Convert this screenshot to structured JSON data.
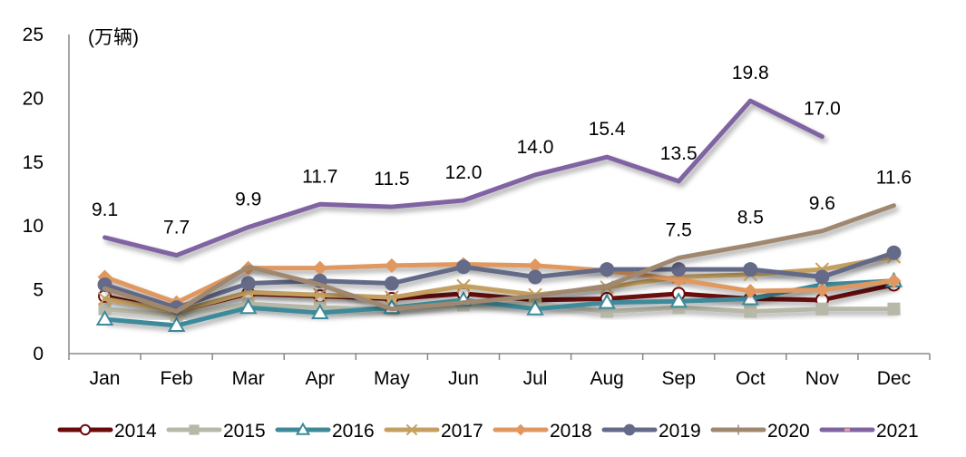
{
  "chart_data": {
    "type": "line",
    "title": "",
    "unit_label": "(万辆)",
    "xlabel": "",
    "ylabel": "",
    "ylim": [
      0,
      25
    ],
    "yticks": [
      0,
      5,
      10,
      15,
      20,
      25
    ],
    "grid": false,
    "legend_position": "bottom",
    "categories": [
      "Jan",
      "Feb",
      "Mar",
      "Apr",
      "May",
      "Jun",
      "Jul",
      "Aug",
      "Sep",
      "Oct",
      "Nov",
      "Dec"
    ],
    "series": [
      {
        "name": "2014",
        "color": "#6B0A0A",
        "marker": "open-circle",
        "values": [
          4.5,
          3.3,
          4.7,
          4.5,
          4.3,
          4.7,
          4.2,
          4.3,
          4.7,
          4.3,
          4.2,
          5.4
        ]
      },
      {
        "name": "2015",
        "color": "#B8B8A8",
        "marker": "square",
        "values": [
          3.5,
          3.0,
          3.9,
          3.6,
          3.5,
          3.8,
          3.9,
          3.3,
          3.6,
          3.3,
          3.5,
          3.5
        ]
      },
      {
        "name": "2016",
        "color": "#3E8A9A",
        "marker": "open-triangle",
        "values": [
          2.7,
          2.2,
          3.6,
          3.2,
          3.6,
          4.2,
          3.5,
          4.0,
          4.1,
          4.3,
          5.4,
          5.7
        ]
      },
      {
        "name": "2017",
        "color": "#C4A060",
        "marker": "x",
        "values": [
          4.3,
          3.3,
          4.8,
          4.6,
          4.4,
          5.3,
          4.6,
          5.2,
          6.0,
          6.2,
          6.6,
          7.6
        ]
      },
      {
        "name": "2018",
        "color": "#E09860",
        "marker": "diamond",
        "values": [
          6.0,
          4.0,
          6.7,
          6.7,
          6.9,
          7.0,
          6.9,
          6.5,
          5.8,
          4.9,
          5.0,
          5.7
        ]
      },
      {
        "name": "2019",
        "color": "#646A88",
        "marker": "circle",
        "values": [
          5.4,
          3.6,
          5.5,
          5.7,
          5.5,
          6.8,
          6.0,
          6.6,
          6.6,
          6.6,
          6.0,
          7.9
        ]
      },
      {
        "name": "2020",
        "color": "#A08870",
        "marker": "plus",
        "values": [
          5.1,
          3.3,
          6.8,
          5.4,
          3.5,
          4.0,
          4.5,
          5.3,
          7.5,
          8.5,
          9.6,
          11.6
        ],
        "data_labels": [
          null,
          null,
          null,
          null,
          null,
          null,
          null,
          null,
          "7.5",
          "8.5",
          "9.6",
          "11.6"
        ]
      },
      {
        "name": "2021",
        "color": "#8064A2",
        "marker": "dash",
        "values": [
          9.1,
          7.7,
          9.9,
          11.7,
          11.5,
          12.0,
          14.0,
          15.4,
          13.5,
          19.8,
          17.0,
          null
        ],
        "data_labels": [
          "9.1",
          "7.7",
          "9.9",
          "11.7",
          "11.5",
          "12.0",
          "14.0",
          "15.4",
          "13.5",
          "19.8",
          "17.0",
          null
        ]
      }
    ]
  }
}
